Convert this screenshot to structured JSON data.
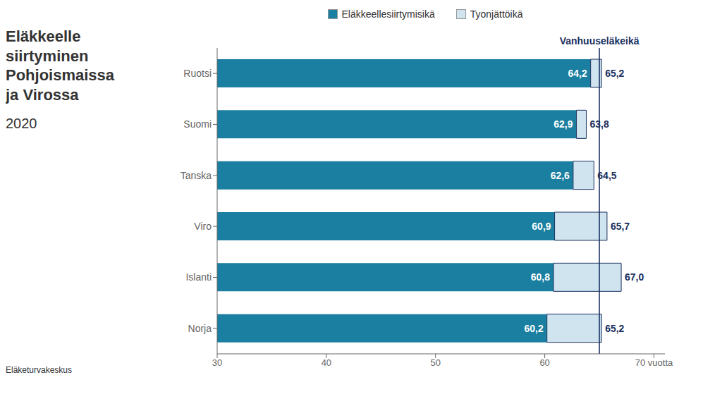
{
  "chart_data": {
    "type": "bar",
    "orientation": "horizontal",
    "title": "Eläkkeelle\nsiirtyminen\nPohjoismaissa\nja Virossa",
    "subtitle": "2020",
    "source": "Eläketurvakeskus",
    "categories": [
      "Ruotsi",
      "Suomi",
      "Tanska",
      "Viro",
      "Islanti",
      "Norja"
    ],
    "series": [
      {
        "name": "Eläkkeellesiirtymisikä",
        "color": "#1a7fa0",
        "values": [
          64.2,
          62.9,
          62.6,
          60.9,
          60.8,
          60.2
        ],
        "value_labels": [
          "64,2",
          "62,9",
          "62,6",
          "60,9",
          "60,8",
          "60,2"
        ]
      },
      {
        "name": "Tyonjättöikä",
        "color": "#cfe4ef",
        "values": [
          65.2,
          63.8,
          64.5,
          65.7,
          67.0,
          65.2
        ],
        "value_labels": [
          "65,2",
          "63,8",
          "64,5",
          "65,7",
          "67,0",
          "65,2"
        ]
      }
    ],
    "data_labels": true,
    "xlim": [
      30,
      71
    ],
    "xticks": [
      30,
      40,
      50,
      60,
      {
        "value": 70,
        "label": "70 vuotta"
      }
    ],
    "annotations": [
      {
        "x": 65.0,
        "label": "Vanhuuseläkeikä"
      }
    ],
    "grid": false
  }
}
